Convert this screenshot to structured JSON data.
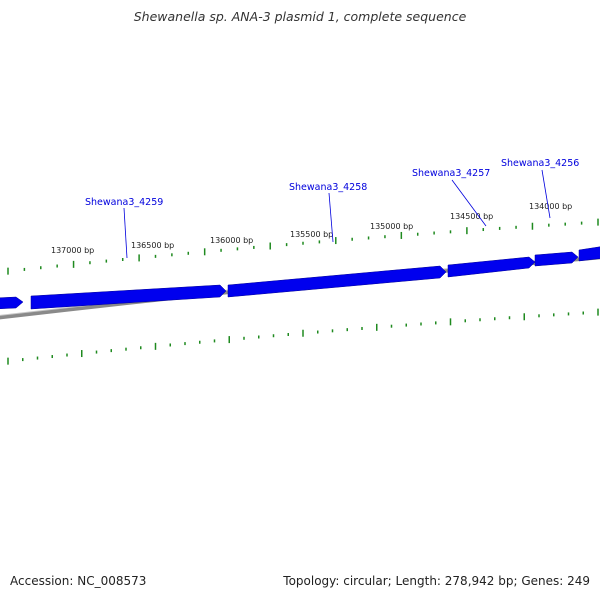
{
  "title": "Shewanella sp. ANA-3 plasmid 1, complete sequence",
  "footer": {
    "accession": "Accession: NC_008573",
    "summary": "Topology: circular; Length: 278,942 bp; Genes: 249"
  },
  "colors": {
    "gene_fill": "#0000ee",
    "gene_edge": "#000099",
    "backbone": "#8a8a8a",
    "tick": "#1f8a1f",
    "gene_label": "#0000dd",
    "text": "#222222"
  },
  "scale_labels": [
    "137000 bp",
    "136500 bp",
    "136000 bp",
    "135500 bp",
    "135000 bp",
    "134500 bp",
    "134000 bp"
  ],
  "gene_labels": [
    "Shewana3_4259",
    "Shewana3_4258",
    "Shewana3_4257",
    "Shewana3_4256"
  ]
}
